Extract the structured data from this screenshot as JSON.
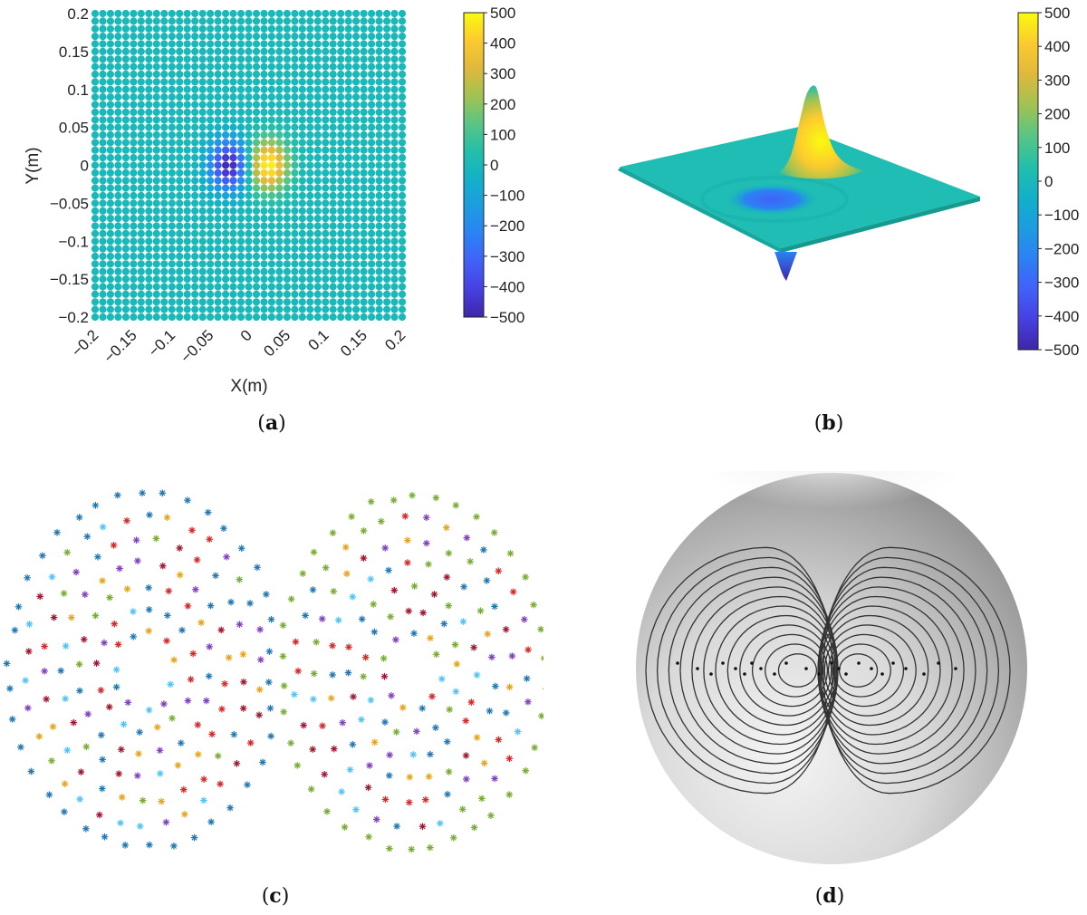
{
  "captions": {
    "a": "a",
    "b": "b",
    "c": "c",
    "d": "d"
  },
  "chart_data": [
    {
      "type": "scatter",
      "subtype": "dipole-field-dot-map",
      "panel": "a",
      "xlabel": "X(m)",
      "ylabel": "Y(m)",
      "xlim": [
        -0.2,
        0.2
      ],
      "ylim": [
        -0.2,
        0.2
      ],
      "xticks": [
        "-0.2",
        "-0.15",
        "-0.1",
        "-0.05",
        "0",
        "0.05",
        "0.1",
        "0.15",
        "0.2"
      ],
      "yticks": [
        "0.2",
        "0.15",
        "0.1",
        "0.05",
        "0",
        "-0.05",
        "-0.1",
        "-0.15",
        "-0.2"
      ],
      "grid_count": 41,
      "dipole": {
        "negative_center": [
          -0.025,
          0
        ],
        "positive_center": [
          0.025,
          0
        ],
        "amplitude": 500,
        "sigma": 0.018
      },
      "colorbar": {
        "range": [
          -500,
          500
        ],
        "ticks": [
          "500",
          "400",
          "300",
          "200",
          "100",
          "0",
          "-100",
          "-200",
          "-300",
          "-400",
          "-500"
        ]
      },
      "grid": false
    },
    {
      "type": "heatmap",
      "subtype": "3d-surface",
      "panel": "b",
      "colorbar": {
        "range": [
          -500,
          500
        ],
        "ticks": [
          "500",
          "400",
          "300",
          "200",
          "100",
          "0",
          "-100",
          "-200",
          "-300",
          "-400",
          "-500"
        ]
      },
      "peak_max": 500,
      "peak_min": -500
    },
    {
      "type": "scatter",
      "subtype": "sensor-rings",
      "panel": "c",
      "groups": 2,
      "rings_per_group": 7,
      "palette": [
        "#1f77b4",
        "#d62728",
        "#7f3fbf",
        "#e8a317",
        "#4fc3f7",
        "#77ac30",
        "#a2142f"
      ]
    },
    {
      "type": "diagram",
      "subtype": "contour-on-sphere",
      "panel": "d",
      "lobes": 2,
      "contour_levels": 12
    }
  ],
  "colors": {
    "parula": [
      "#3e26a8",
      "#4740e1",
      "#4161f8",
      "#2b82f4",
      "#1c9de0",
      "#12b1c8",
      "#23bfaa",
      "#5ac583",
      "#a2c251",
      "#e0b83c",
      "#fcca2e",
      "#f9fb0e"
    ],
    "sphere_light": "#f2f2f2",
    "sphere_dark": "#8a8a8a",
    "contour": "#333333"
  }
}
